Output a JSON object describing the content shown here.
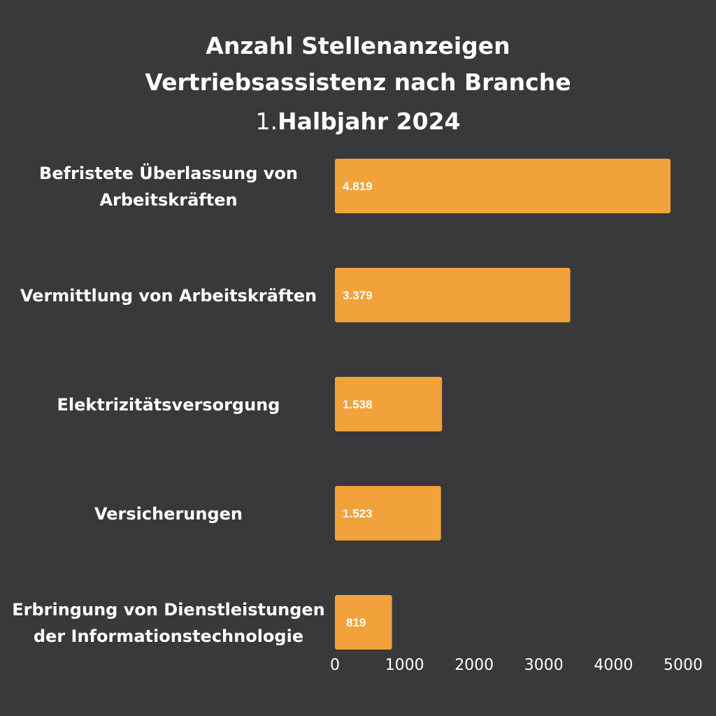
{
  "title": {
    "line1": "Anzahl Stellenanzeigen",
    "line2": "Vertriebsassistenz nach Branche",
    "line3_number": "1.",
    "line3_text": "Halbjahr 2024"
  },
  "colors": {
    "background": "#39393b",
    "bar": "#f2a23a",
    "text": "#ffffff"
  },
  "chart_data": {
    "type": "bar",
    "orientation": "horizontal",
    "categories": [
      [
        "Befristete Überlassung von",
        "Arbeitskräften"
      ],
      [
        "Vermittlung von Arbeitskräften"
      ],
      [
        "Elektrizitätsversorgung"
      ],
      [
        "Versicherungen"
      ],
      [
        "Erbringung von Dienstleistungen",
        "der Informationstechnologie"
      ]
    ],
    "values": [
      4819,
      3379,
      1538,
      1523,
      819
    ],
    "value_labels": [
      "4.819",
      "3.379",
      "1.538",
      "1.523",
      "819"
    ],
    "xlim": [
      0,
      5000
    ],
    "xticks": [
      "0",
      "1000",
      "2000",
      "3000",
      "4000",
      "5000"
    ],
    "grid": false,
    "legend": "none"
  }
}
